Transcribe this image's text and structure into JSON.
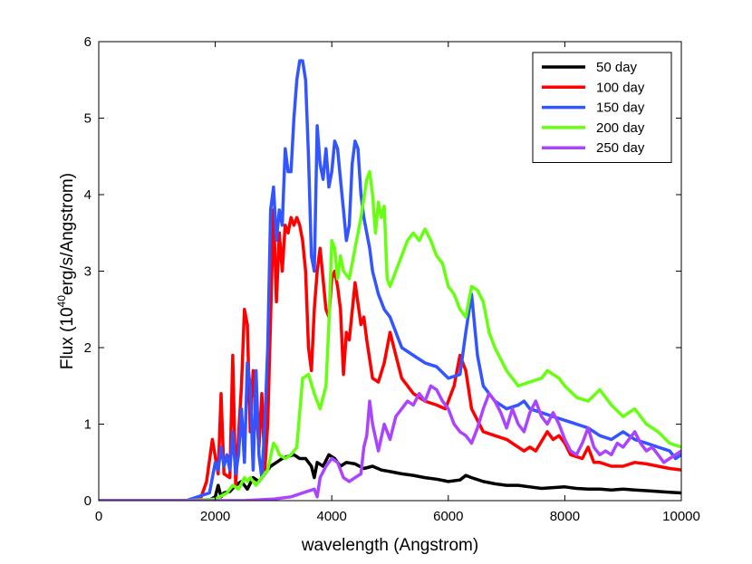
{
  "chart_data": {
    "type": "line",
    "title": "",
    "xlabel": "wavelength (Angstrom)",
    "ylabel_prefix": "Flux (10",
    "ylabel_sup": "40",
    "ylabel_suffix": "erg/s/Angstrom)",
    "xlim": [
      0,
      10000
    ],
    "ylim": [
      0,
      6
    ],
    "xticks": [
      0,
      2000,
      4000,
      6000,
      8000,
      10000
    ],
    "yticks": [
      0,
      1,
      2,
      3,
      4,
      5,
      6
    ],
    "grid": false,
    "legend_position": "top-right",
    "series": [
      {
        "name": "50 day",
        "color": "#000000",
        "x": [
          0,
          1500,
          1900,
          2000,
          2050,
          2100,
          2150,
          2250,
          2350,
          2450,
          2550,
          2650,
          2750,
          2850,
          2950,
          3050,
          3150,
          3250,
          3350,
          3450,
          3550,
          3650,
          3700,
          3750,
          3850,
          3950,
          4050,
          4150,
          4250,
          4400,
          4550,
          4700,
          4850,
          5000,
          5200,
          5400,
          5600,
          5800,
          6000,
          6200,
          6300,
          6400,
          6600,
          6800,
          7000,
          7200,
          7400,
          7600,
          7800,
          8000,
          8200,
          8400,
          8600,
          8800,
          9000,
          9200,
          9400,
          9600,
          9800,
          10000
        ],
        "y": [
          0,
          0,
          0.01,
          0.05,
          0.2,
          0.05,
          0.1,
          0.12,
          0.2,
          0.25,
          0.15,
          0.3,
          0.25,
          0.35,
          0.45,
          0.5,
          0.55,
          0.58,
          0.6,
          0.55,
          0.55,
          0.45,
          0.3,
          0.5,
          0.45,
          0.6,
          0.55,
          0.45,
          0.5,
          0.48,
          0.42,
          0.45,
          0.4,
          0.38,
          0.35,
          0.33,
          0.3,
          0.28,
          0.25,
          0.27,
          0.33,
          0.3,
          0.25,
          0.22,
          0.2,
          0.2,
          0.18,
          0.16,
          0.17,
          0.18,
          0.16,
          0.15,
          0.15,
          0.14,
          0.15,
          0.14,
          0.13,
          0.12,
          0.11,
          0.1
        ]
      },
      {
        "name": "100 day",
        "color": "#ff0000",
        "x": [
          0,
          1500,
          1750,
          1850,
          1950,
          2050,
          2100,
          2150,
          2250,
          2300,
          2350,
          2450,
          2500,
          2550,
          2600,
          2650,
          2750,
          2800,
          2850,
          2900,
          3000,
          3050,
          3100,
          3150,
          3200,
          3250,
          3300,
          3350,
          3400,
          3450,
          3500,
          3550,
          3600,
          3650,
          3700,
          3750,
          3800,
          3900,
          3950,
          4000,
          4050,
          4100,
          4150,
          4200,
          4250,
          4300,
          4400,
          4500,
          4550,
          4600,
          4700,
          4800,
          4900,
          5000,
          5100,
          5200,
          5400,
          5600,
          5800,
          5950,
          6100,
          6200,
          6300,
          6400,
          6500,
          6600,
          6800,
          7000,
          7100,
          7200,
          7300,
          7400,
          7500,
          7700,
          7800,
          7900,
          8000,
          8100,
          8300,
          8400,
          8500,
          8600,
          8800,
          9000,
          9200,
          9400,
          9600,
          9800,
          10000
        ],
        "y": [
          0,
          0,
          0.03,
          0.25,
          0.8,
          0.35,
          1.4,
          0.35,
          0.3,
          1.9,
          0.2,
          1.5,
          2.5,
          2.3,
          0.9,
          1.7,
          0.7,
          1.4,
          0.4,
          1.0,
          3.8,
          2.6,
          3.5,
          3.0,
          3.6,
          3.5,
          3.7,
          3.6,
          3.7,
          3.6,
          3.4,
          3.0,
          2.0,
          1.7,
          2.5,
          3.0,
          3.3,
          2.5,
          2.4,
          2.9,
          3.0,
          2.8,
          2.5,
          1.65,
          2.2,
          2.1,
          2.85,
          2.3,
          2.4,
          2.1,
          1.6,
          1.55,
          1.8,
          2.2,
          1.9,
          1.6,
          1.4,
          1.3,
          1.25,
          1.2,
          1.5,
          1.9,
          1.7,
          1.2,
          1.05,
          0.9,
          0.85,
          0.8,
          0.75,
          0.7,
          0.65,
          0.7,
          0.65,
          0.9,
          0.8,
          0.85,
          0.75,
          0.6,
          0.55,
          0.7,
          0.5,
          0.5,
          0.45,
          0.45,
          0.5,
          0.48,
          0.45,
          0.42,
          0.4
        ]
      },
      {
        "name": "150 day",
        "color": "#3355ff",
        "x": [
          0,
          1500,
          1900,
          2000,
          2050,
          2100,
          2150,
          2200,
          2250,
          2300,
          2350,
          2400,
          2450,
          2500,
          2550,
          2600,
          2650,
          2700,
          2750,
          2800,
          2850,
          2900,
          2950,
          3000,
          3050,
          3100,
          3150,
          3200,
          3250,
          3300,
          3350,
          3400,
          3450,
          3500,
          3550,
          3600,
          3650,
          3700,
          3750,
          3800,
          3850,
          3900,
          3950,
          4000,
          4050,
          4100,
          4150,
          4200,
          4250,
          4300,
          4350,
          4400,
          4450,
          4500,
          4550,
          4600,
          4650,
          4700,
          4800,
          4900,
          5000,
          5200,
          5400,
          5600,
          5800,
          6000,
          6200,
          6300,
          6400,
          6500,
          6600,
          6800,
          7000,
          7200,
          7300,
          7400,
          7600,
          7800,
          8000,
          8200,
          8400,
          8600,
          8800,
          9000,
          9200,
          9400,
          9600,
          9800,
          9900,
          10000
        ],
        "y": [
          0,
          0,
          0.1,
          0.5,
          0.4,
          0.7,
          0.45,
          0.6,
          0.4,
          0.9,
          0.35,
          0.6,
          1.2,
          0.5,
          1.8,
          1.5,
          0.4,
          1.7,
          0.6,
          0.3,
          1.0,
          2.0,
          3.8,
          4.1,
          3.4,
          3.8,
          3.6,
          4.6,
          4.3,
          4.3,
          5.0,
          5.5,
          5.75,
          5.75,
          5.5,
          4.5,
          3.2,
          3.0,
          4.9,
          4.4,
          4.2,
          4.6,
          4.1,
          4.3,
          4.7,
          4.6,
          4.2,
          3.8,
          3.4,
          3.6,
          4.4,
          4.7,
          4.6,
          4.0,
          3.7,
          3.5,
          3.3,
          3.0,
          2.7,
          2.5,
          2.4,
          2.0,
          1.9,
          1.8,
          1.75,
          1.6,
          1.65,
          2.2,
          2.7,
          1.9,
          1.5,
          1.3,
          1.2,
          1.25,
          1.3,
          1.2,
          1.15,
          1.1,
          1.05,
          1.0,
          0.95,
          0.85,
          0.8,
          0.9,
          0.8,
          0.75,
          0.7,
          0.65,
          0.55,
          0.6
        ]
      },
      {
        "name": "200 day",
        "color": "#66ff11",
        "x": [
          0,
          1500,
          2000,
          2200,
          2300,
          2400,
          2500,
          2550,
          2600,
          2700,
          2800,
          2900,
          3000,
          3050,
          3100,
          3200,
          3300,
          3400,
          3500,
          3600,
          3700,
          3800,
          3900,
          3950,
          4000,
          4050,
          4100,
          4150,
          4200,
          4300,
          4400,
          4500,
          4600,
          4650,
          4700,
          4750,
          4800,
          4850,
          4900,
          4950,
          5000,
          5100,
          5200,
          5300,
          5400,
          5500,
          5600,
          5700,
          5800,
          5900,
          6000,
          6100,
          6200,
          6300,
          6400,
          6500,
          6600,
          6700,
          6800,
          7000,
          7200,
          7400,
          7600,
          7700,
          7800,
          7900,
          8000,
          8200,
          8400,
          8600,
          8800,
          9000,
          9200,
          9400,
          9600,
          9800,
          10000
        ],
        "y": [
          0,
          0,
          0.02,
          0.1,
          0.2,
          0.15,
          0.3,
          0.25,
          0.3,
          0.2,
          0.3,
          0.4,
          0.75,
          0.7,
          0.6,
          0.55,
          0.6,
          0.7,
          1.6,
          1.65,
          1.4,
          1.2,
          1.5,
          2.3,
          3.4,
          3.3,
          2.9,
          3.2,
          3.0,
          2.9,
          3.3,
          3.7,
          4.2,
          4.3,
          4.0,
          3.5,
          3.9,
          3.7,
          3.85,
          2.9,
          2.8,
          3.0,
          3.2,
          3.4,
          3.5,
          3.4,
          3.55,
          3.4,
          3.2,
          3.1,
          2.8,
          2.7,
          2.5,
          2.4,
          2.8,
          2.75,
          2.6,
          2.2,
          2.0,
          1.7,
          1.5,
          1.55,
          1.6,
          1.7,
          1.65,
          1.6,
          1.5,
          1.35,
          1.3,
          1.45,
          1.25,
          1.1,
          1.2,
          1.0,
          0.9,
          0.75,
          0.7
        ]
      },
      {
        "name": "250 day",
        "color": "#aa44ff",
        "x": [
          0,
          1500,
          2500,
          3000,
          3300,
          3500,
          3700,
          3750,
          3800,
          3900,
          4000,
          4100,
          4200,
          4300,
          4400,
          4500,
          4550,
          4600,
          4650,
          4700,
          4800,
          4900,
          5000,
          5100,
          5200,
          5300,
          5400,
          5500,
          5600,
          5700,
          5800,
          5900,
          6000,
          6100,
          6200,
          6300,
          6400,
          6500,
          6600,
          6700,
          6800,
          6900,
          7000,
          7100,
          7200,
          7300,
          7400,
          7500,
          7600,
          7700,
          7800,
          7900,
          8000,
          8100,
          8200,
          8300,
          8400,
          8500,
          8600,
          8700,
          8800,
          8900,
          9000,
          9100,
          9200,
          9300,
          9400,
          9500,
          9600,
          9700,
          9800,
          9900,
          10000
        ],
        "y": [
          0,
          0,
          0,
          0.02,
          0.05,
          0.1,
          0.15,
          0.05,
          0.3,
          0.45,
          0.55,
          0.5,
          0.3,
          0.25,
          0.3,
          0.35,
          0.7,
          0.85,
          1.3,
          1.0,
          0.65,
          1.0,
          0.8,
          1.1,
          1.2,
          1.3,
          1.25,
          1.4,
          1.3,
          1.5,
          1.45,
          1.3,
          1.2,
          1.0,
          0.9,
          0.85,
          0.75,
          0.95,
          1.2,
          1.4,
          1.3,
          1.15,
          0.95,
          1.2,
          1.0,
          0.9,
          1.15,
          1.3,
          1.1,
          1.0,
          1.15,
          1.0,
          0.8,
          0.65,
          0.6,
          0.75,
          0.95,
          0.7,
          0.6,
          0.65,
          0.6,
          0.75,
          0.7,
          0.8,
          0.9,
          0.75,
          0.65,
          0.7,
          0.6,
          0.5,
          0.55,
          0.6,
          0.65
        ]
      }
    ]
  }
}
